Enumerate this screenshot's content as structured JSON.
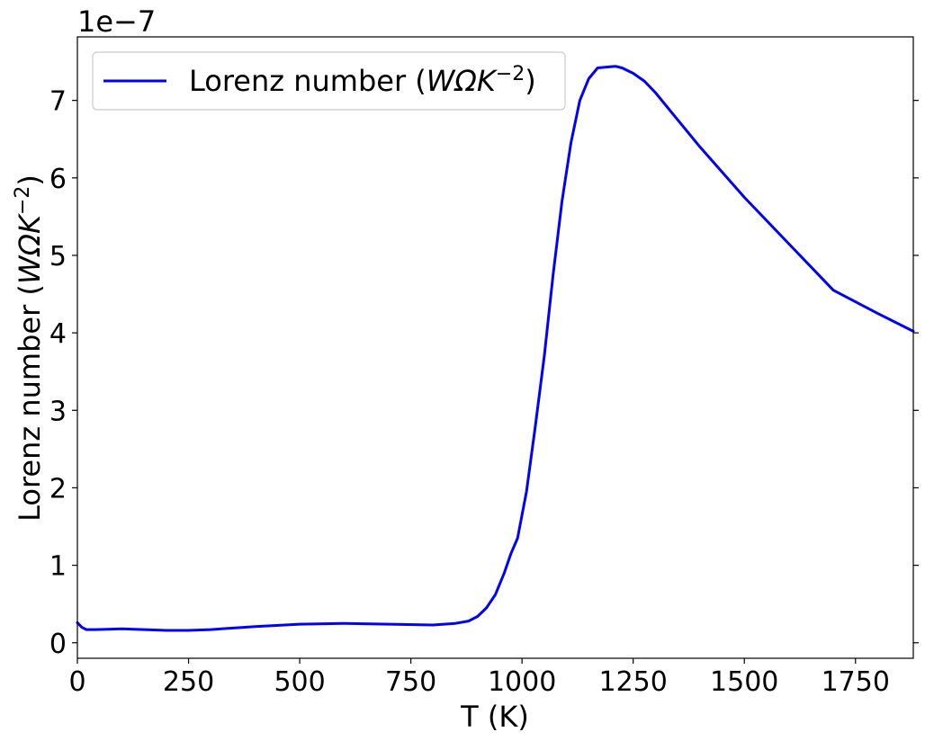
{
  "chart_data": {
    "type": "line",
    "offset_text": "1e−7",
    "xlabel": "T (K)",
    "ylabel_main": "Lorenz number (",
    "ylabel_math": "WΩK",
    "ylabel_exp": "−2",
    "ylabel_close": ")",
    "xlim": [
      0,
      1880
    ],
    "ylim": [
      -0.2,
      7.82
    ],
    "xticks": [
      0,
      250,
      500,
      750,
      1000,
      1250,
      1500,
      1750
    ],
    "xtick_labels": [
      "0",
      "250",
      "500",
      "750",
      "1000",
      "1250",
      "1500",
      "1750"
    ],
    "yticks": [
      0,
      1,
      2,
      3,
      4,
      5,
      6,
      7
    ],
    "ytick_labels": [
      "0",
      "1",
      "2",
      "3",
      "4",
      "5",
      "6",
      "7"
    ],
    "legend": {
      "position": "upper-left",
      "label_main": "Lorenz number (",
      "label_math": "WΩK",
      "label_exp": "−2",
      "label_close": ")"
    },
    "series": [
      {
        "name": "Lorenz number (WΩK−2)",
        "color": "#0000ff",
        "x": [
          0,
          10,
          20,
          40,
          100,
          150,
          200,
          250,
          300,
          400,
          500,
          600,
          700,
          800,
          850,
          880,
          900,
          920,
          940,
          960,
          975,
          990,
          1010,
          1030,
          1050,
          1070,
          1090,
          1110,
          1130,
          1150,
          1170,
          1190,
          1210,
          1225,
          1250,
          1275,
          1300,
          1350,
          1400,
          1500,
          1600,
          1700,
          1800,
          1880
        ],
        "values": [
          0.26,
          0.2,
          0.17,
          0.17,
          0.18,
          0.17,
          0.16,
          0.16,
          0.17,
          0.21,
          0.24,
          0.25,
          0.24,
          0.23,
          0.25,
          0.28,
          0.34,
          0.45,
          0.62,
          0.9,
          1.15,
          1.35,
          1.95,
          2.8,
          3.7,
          4.75,
          5.7,
          6.45,
          7.0,
          7.28,
          7.42,
          7.43,
          7.44,
          7.42,
          7.35,
          7.25,
          7.1,
          6.75,
          6.4,
          5.75,
          5.15,
          4.55,
          4.25,
          4.02
        ]
      }
    ]
  }
}
